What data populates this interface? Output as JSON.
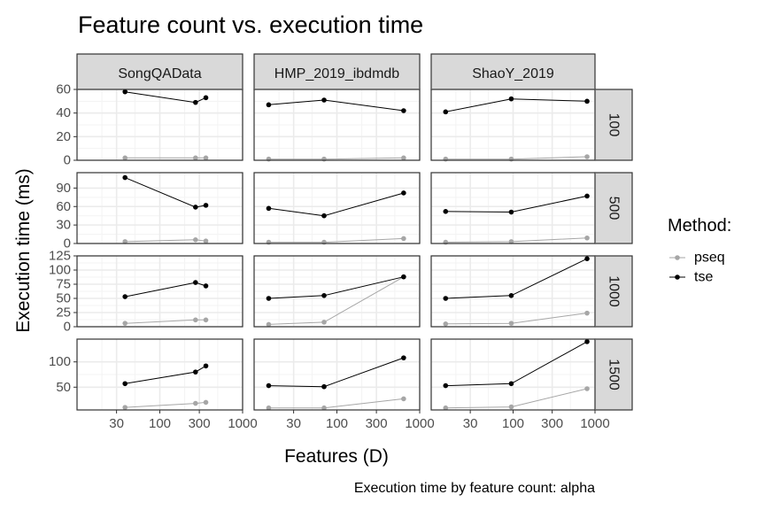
{
  "chart_data": {
    "type": "line",
    "title": "Feature count vs. execution time",
    "xlabel": "Features (D)",
    "ylabel": "Execution time (ms)",
    "caption": "Execution time by feature count: alpha",
    "x_scale": "log10",
    "xlim": [
      10,
      1000
    ],
    "x_ticks": [
      30,
      100,
      300,
      1000
    ],
    "x_tick_labels": [
      "30",
      "100",
      "300",
      "1000"
    ],
    "legend": {
      "title": "Method:",
      "position": "right",
      "entries": [
        "pseq",
        "tse"
      ]
    },
    "colors": {
      "pseq": "#a6a6a6",
      "tse": "#000000",
      "strip_fill": "#d9d9d9",
      "panel_border": "#333333",
      "grid": "#ebebeb"
    },
    "columns": [
      "SongQAData",
      "HMP_2019_ibdmdb",
      "ShaoY_2019"
    ],
    "rows": [
      {
        "label": "100",
        "ylim": [
          0,
          60
        ],
        "y_ticks": [
          0,
          20,
          40,
          60
        ],
        "y_tick_labels": [
          "0",
          "20",
          "40",
          "60"
        ]
      },
      {
        "label": "500",
        "ylim": [
          0,
          115
        ],
        "y_ticks": [
          0,
          30,
          60,
          90
        ],
        "y_tick_labels": [
          "0",
          "30",
          "60",
          "90"
        ]
      },
      {
        "label": "1000",
        "ylim": [
          0,
          125
        ],
        "y_ticks": [
          0,
          25,
          50,
          75,
          100,
          125
        ],
        "y_tick_labels": [
          "0",
          "25",
          "50",
          "75",
          "100",
          "125"
        ]
      },
      {
        "label": "1500",
        "ylim": [
          5,
          145
        ],
        "y_ticks": [
          50,
          100
        ],
        "y_tick_labels": [
          "50",
          "100"
        ]
      }
    ],
    "x_per_column": [
      [
        38,
        270,
        360
      ],
      [
        15,
        70,
        640
      ],
      [
        15,
        95,
        800
      ]
    ],
    "panels": [
      {
        "row": 0,
        "col": 0,
        "series": [
          {
            "name": "pseq",
            "values": [
              2,
              2,
              2
            ]
          },
          {
            "name": "tse",
            "values": [
              58,
              49,
              53
            ]
          }
        ]
      },
      {
        "row": 0,
        "col": 1,
        "series": [
          {
            "name": "pseq",
            "values": [
              1,
              1,
              2
            ]
          },
          {
            "name": "tse",
            "values": [
              47,
              51,
              42
            ]
          }
        ]
      },
      {
        "row": 0,
        "col": 2,
        "series": [
          {
            "name": "pseq",
            "values": [
              1,
              1,
              3
            ]
          },
          {
            "name": "tse",
            "values": [
              41,
              52,
              50
            ]
          }
        ]
      },
      {
        "row": 1,
        "col": 0,
        "series": [
          {
            "name": "pseq",
            "values": [
              3,
              6,
              4
            ]
          },
          {
            "name": "tse",
            "values": [
              107,
              59,
              62
            ]
          }
        ]
      },
      {
        "row": 1,
        "col": 1,
        "series": [
          {
            "name": "pseq",
            "values": [
              2,
              2,
              8
            ]
          },
          {
            "name": "tse",
            "values": [
              57,
              45,
              82
            ]
          }
        ]
      },
      {
        "row": 1,
        "col": 2,
        "series": [
          {
            "name": "pseq",
            "values": [
              2,
              3,
              9
            ]
          },
          {
            "name": "tse",
            "values": [
              52,
              51,
              77
            ]
          }
        ]
      },
      {
        "row": 2,
        "col": 0,
        "series": [
          {
            "name": "pseq",
            "values": [
              6,
              12,
              12
            ]
          },
          {
            "name": "tse",
            "values": [
              53,
              78,
              72
            ]
          }
        ]
      },
      {
        "row": 2,
        "col": 1,
        "series": [
          {
            "name": "pseq",
            "values": [
              4,
              8,
              88
            ]
          },
          {
            "name": "tse",
            "values": [
              50,
              55,
              88
            ]
          }
        ]
      },
      {
        "row": 2,
        "col": 2,
        "series": [
          {
            "name": "pseq",
            "values": [
              5,
              6,
              24
            ]
          },
          {
            "name": "tse",
            "values": [
              50,
              55,
              120
            ]
          }
        ]
      },
      {
        "row": 3,
        "col": 0,
        "series": [
          {
            "name": "pseq",
            "values": [
              10,
              18,
              20
            ]
          },
          {
            "name": "tse",
            "values": [
              57,
              80,
              92
            ]
          }
        ]
      },
      {
        "row": 3,
        "col": 1,
        "series": [
          {
            "name": "pseq",
            "values": [
              9,
              9,
              27
            ]
          },
          {
            "name": "tse",
            "values": [
              53,
              51,
              108
            ]
          }
        ]
      },
      {
        "row": 3,
        "col": 2,
        "series": [
          {
            "name": "pseq",
            "values": [
              9,
              11,
              47
            ]
          },
          {
            "name": "tse",
            "values": [
              53,
              57,
              140
            ]
          }
        ]
      }
    ]
  }
}
